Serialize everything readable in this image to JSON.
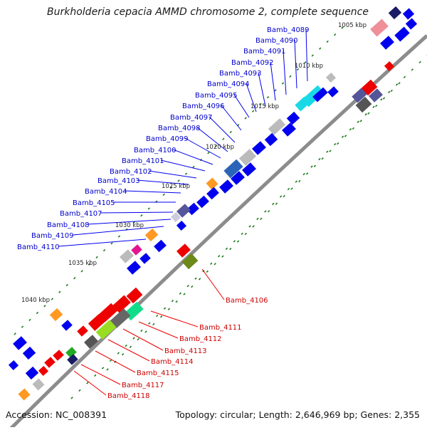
{
  "title": "Burkholderia cepacia AMMD chromosome 2, complete sequence",
  "footer": {
    "accession": "Accession: NC_008391",
    "topology": "Topology: circular; Length: 2,646,969 bp; Genes: 2,355"
  },
  "colors": {
    "backbone": "#8c8c8c",
    "forward_gene": "#0000ee",
    "reverse_gene": "#ee0000",
    "tick": "#1a7a1a",
    "forward_label": "#0000cc",
    "reverse_label": "#cc0000",
    "ruler_label": "#222222"
  },
  "ruler_labels": [
    "1005 kbp",
    "1010 kbp",
    "1015 kbp",
    "1020 kbp",
    "1025 kbp",
    "1030 kbp",
    "1035 kbp",
    "1040 kbp"
  ],
  "forward_labels": [
    "Bamb_4089",
    "Bamb_4090",
    "Bamb_4091",
    "Bamb_4092",
    "Bamb_4093",
    "Bamb_4094",
    "Bamb_4095",
    "Bamb_4096",
    "Bamb_4097",
    "Bamb_4098",
    "Bamb_4099",
    "Bamb_4100",
    "Bamb_4101",
    "Bamb_4102",
    "Bamb_4103",
    "Bamb_4104",
    "Bamb_4105",
    "Bamb_4107",
    "Bamb_4108",
    "Bamb_4109",
    "Bamb_4110"
  ],
  "reverse_labels": [
    "Bamb_4106",
    "Bamb_4111",
    "Bamb_4112",
    "Bamb_4113",
    "Bamb_4114",
    "Bamb_4115",
    "Bamb_4117",
    "Bamb_4118"
  ]
}
